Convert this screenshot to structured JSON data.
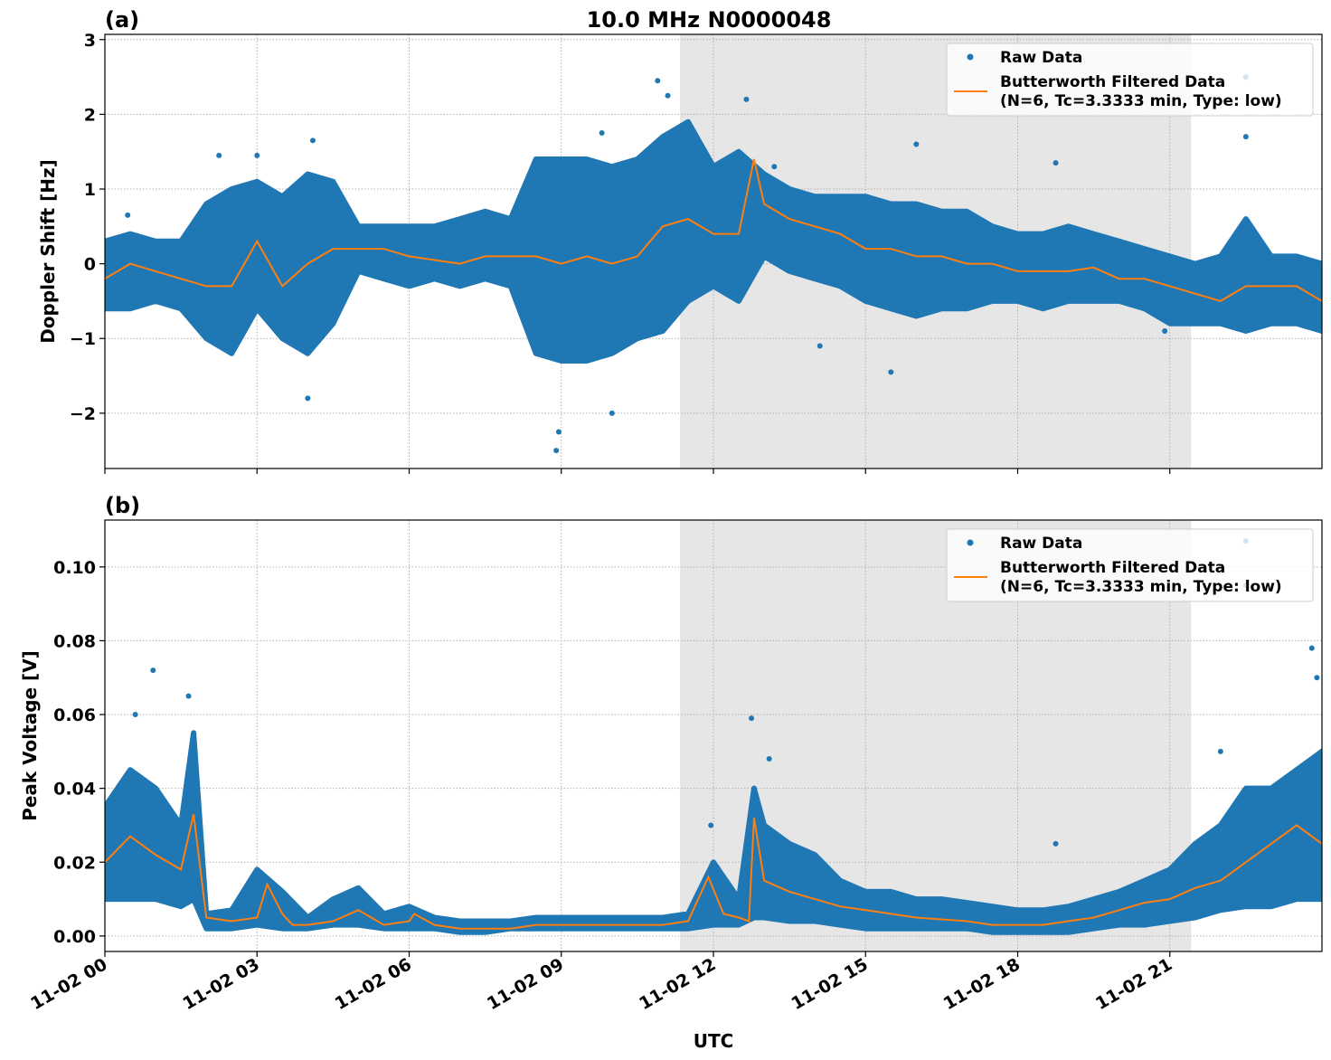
{
  "title": "10.0 MHz N0000048",
  "colors": {
    "raw": "#1f77b4",
    "filtered": "#ff7f0e",
    "shade": "#e6e6e6"
  },
  "chart_data": [
    {
      "type": "scatter",
      "panel_label": "(a)",
      "ylabel": "Doppler Shift [Hz]",
      "xlabel": "",
      "x_unit": "hours UTC on 11-02",
      "xlim": [
        0,
        24
      ],
      "ylim": [
        -2.74,
        3.07
      ],
      "yticks": [
        -2,
        -1,
        0,
        1,
        2,
        3
      ],
      "ytick_labels": [
        "−2",
        "−1",
        "0",
        "1",
        "2",
        "3"
      ],
      "grid": true,
      "shaded_interval": [
        11.34,
        21.42
      ],
      "legend": {
        "placement": "top-right",
        "entries": [
          "Raw Data",
          "Butterworth Filtered Data",
          "(N=6, Tc=3.3333 min, Type: low)"
        ]
      },
      "raw_envelope": [
        [
          0,
          -0.6,
          0.3
        ],
        [
          0.5,
          -0.6,
          0.4
        ],
        [
          1,
          -0.5,
          0.3
        ],
        [
          1.5,
          -0.6,
          0.3
        ],
        [
          2,
          -1.0,
          0.8
        ],
        [
          2.5,
          -1.2,
          1.0
        ],
        [
          3,
          -0.6,
          1.1
        ],
        [
          3.5,
          -1.0,
          0.9
        ],
        [
          4,
          -1.2,
          1.2
        ],
        [
          4.5,
          -0.8,
          1.1
        ],
        [
          5,
          -0.1,
          0.5
        ],
        [
          5.5,
          -0.2,
          0.5
        ],
        [
          6,
          -0.3,
          0.5
        ],
        [
          6.5,
          -0.2,
          0.5
        ],
        [
          7,
          -0.3,
          0.6
        ],
        [
          7.5,
          -0.2,
          0.7
        ],
        [
          8,
          -0.3,
          0.6
        ],
        [
          8.5,
          -1.2,
          1.4
        ],
        [
          9,
          -1.3,
          1.4
        ],
        [
          9.5,
          -1.3,
          1.4
        ],
        [
          10,
          -1.2,
          1.3
        ],
        [
          10.5,
          -1.0,
          1.4
        ],
        [
          11,
          -0.9,
          1.7
        ],
        [
          11.5,
          -0.5,
          1.9
        ],
        [
          12,
          -0.3,
          1.3
        ],
        [
          12.5,
          -0.5,
          1.5
        ],
        [
          13,
          0.1,
          1.2
        ],
        [
          13.5,
          -0.1,
          1.0
        ],
        [
          14,
          -0.2,
          0.9
        ],
        [
          14.5,
          -0.3,
          0.9
        ],
        [
          15,
          -0.5,
          0.9
        ],
        [
          15.5,
          -0.6,
          0.8
        ],
        [
          16,
          -0.7,
          0.8
        ],
        [
          16.5,
          -0.6,
          0.7
        ],
        [
          17,
          -0.6,
          0.7
        ],
        [
          17.5,
          -0.5,
          0.5
        ],
        [
          18,
          -0.5,
          0.4
        ],
        [
          18.5,
          -0.6,
          0.4
        ],
        [
          19,
          -0.5,
          0.5
        ],
        [
          19.5,
          -0.5,
          0.4
        ],
        [
          20,
          -0.5,
          0.3
        ],
        [
          20.5,
          -0.6,
          0.2
        ],
        [
          21,
          -0.8,
          0.1
        ],
        [
          21.5,
          -0.8,
          0.0
        ],
        [
          22,
          -0.8,
          0.1
        ],
        [
          22.5,
          -0.9,
          0.6
        ],
        [
          23,
          -0.8,
          0.1
        ],
        [
          23.5,
          -0.8,
          0.1
        ],
        [
          24,
          -0.9,
          0.0
        ]
      ],
      "raw_outliers": [
        [
          10.9,
          2.45
        ],
        [
          11.1,
          2.25
        ],
        [
          12.65,
          2.2
        ],
        [
          22.5,
          2.5
        ],
        [
          22.5,
          1.7
        ],
        [
          8.9,
          -2.5
        ],
        [
          8.95,
          -2.25
        ],
        [
          4.1,
          1.65
        ],
        [
          15.5,
          -1.45
        ],
        [
          16.0,
          1.6
        ],
        [
          18.75,
          1.35
        ],
        [
          0.45,
          0.65
        ],
        [
          2.25,
          1.45
        ],
        [
          3.0,
          1.45
        ],
        [
          4.0,
          -1.8
        ],
        [
          9.8,
          1.75
        ],
        [
          10.0,
          -2.0
        ],
        [
          13.2,
          1.3
        ],
        [
          14.1,
          -1.1
        ],
        [
          20.9,
          -0.9
        ]
      ],
      "filtered": [
        [
          0,
          -0.2
        ],
        [
          0.5,
          0.0
        ],
        [
          1,
          -0.1
        ],
        [
          1.5,
          -0.2
        ],
        [
          2,
          -0.3
        ],
        [
          2.5,
          -0.3
        ],
        [
          3,
          0.3
        ],
        [
          3.5,
          -0.3
        ],
        [
          4,
          0.0
        ],
        [
          4.5,
          0.2
        ],
        [
          5,
          0.2
        ],
        [
          5.5,
          0.2
        ],
        [
          6,
          0.1
        ],
        [
          6.5,
          0.05
        ],
        [
          7,
          0.0
        ],
        [
          7.5,
          0.1
        ],
        [
          8,
          0.1
        ],
        [
          8.5,
          0.1
        ],
        [
          9,
          0.0
        ],
        [
          9.5,
          0.1
        ],
        [
          10,
          0.0
        ],
        [
          10.5,
          0.1
        ],
        [
          11,
          0.5
        ],
        [
          11.5,
          0.6
        ],
        [
          12,
          0.4
        ],
        [
          12.5,
          0.4
        ],
        [
          12.8,
          1.4
        ],
        [
          13,
          0.8
        ],
        [
          13.5,
          0.6
        ],
        [
          14,
          0.5
        ],
        [
          14.5,
          0.4
        ],
        [
          15,
          0.2
        ],
        [
          15.5,
          0.2
        ],
        [
          16,
          0.1
        ],
        [
          16.5,
          0.1
        ],
        [
          17,
          0.0
        ],
        [
          17.5,
          0.0
        ],
        [
          18,
          -0.1
        ],
        [
          18.5,
          -0.1
        ],
        [
          19,
          -0.1
        ],
        [
          19.5,
          -0.05
        ],
        [
          20,
          -0.2
        ],
        [
          20.5,
          -0.2
        ],
        [
          21,
          -0.3
        ],
        [
          21.5,
          -0.4
        ],
        [
          22,
          -0.5
        ],
        [
          22.5,
          -0.3
        ],
        [
          23,
          -0.3
        ],
        [
          23.5,
          -0.3
        ],
        [
          24,
          -0.5
        ]
      ]
    },
    {
      "type": "scatter",
      "panel_label": "(b)",
      "ylabel": "Peak Voltage [V]",
      "xlabel": "UTC",
      "xlim": [
        0,
        24
      ],
      "ylim": [
        -0.0042,
        0.1127
      ],
      "yticks": [
        0,
        0.02,
        0.04,
        0.06,
        0.08,
        0.1
      ],
      "ytick_labels": [
        "0.00",
        "0.02",
        "0.04",
        "0.06",
        "0.08",
        "0.10"
      ],
      "xticks": [
        0,
        3,
        6,
        9,
        12,
        15,
        18,
        21
      ],
      "xtick_labels": [
        "11-02 00",
        "11-02 03",
        "11-02 06",
        "11-02 09",
        "11-02 12",
        "11-02 15",
        "11-02 18",
        "11-02 21"
      ],
      "grid": true,
      "shaded_interval": [
        11.34,
        21.42
      ],
      "legend": {
        "placement": "top-right",
        "entries": [
          "Raw Data",
          "Butterworth Filtered Data",
          "(N=6, Tc=3.3333 min, Type: low)"
        ]
      },
      "raw_envelope": [
        [
          0,
          0.01,
          0.035
        ],
        [
          0.5,
          0.01,
          0.045
        ],
        [
          1,
          0.01,
          0.04
        ],
        [
          1.5,
          0.008,
          0.03
        ],
        [
          1.75,
          0.01,
          0.055
        ],
        [
          2,
          0.002,
          0.006
        ],
        [
          2.5,
          0.002,
          0.007
        ],
        [
          3,
          0.003,
          0.018
        ],
        [
          3.5,
          0.002,
          0.012
        ],
        [
          4,
          0.002,
          0.005
        ],
        [
          4.5,
          0.003,
          0.01
        ],
        [
          5,
          0.003,
          0.013
        ],
        [
          5.5,
          0.002,
          0.006
        ],
        [
          6,
          0.002,
          0.008
        ],
        [
          6.5,
          0.002,
          0.005
        ],
        [
          7,
          0.001,
          0.004
        ],
        [
          7.5,
          0.001,
          0.004
        ],
        [
          8,
          0.002,
          0.004
        ],
        [
          8.5,
          0.002,
          0.005
        ],
        [
          9,
          0.002,
          0.005
        ],
        [
          10,
          0.002,
          0.005
        ],
        [
          11,
          0.002,
          0.005
        ],
        [
          11.5,
          0.002,
          0.006
        ],
        [
          12,
          0.003,
          0.02
        ],
        [
          12.5,
          0.003,
          0.01
        ],
        [
          12.8,
          0.005,
          0.04
        ],
        [
          13,
          0.005,
          0.03
        ],
        [
          13.5,
          0.004,
          0.025
        ],
        [
          14,
          0.004,
          0.022
        ],
        [
          14.5,
          0.003,
          0.015
        ],
        [
          15,
          0.002,
          0.012
        ],
        [
          15.5,
          0.002,
          0.012
        ],
        [
          16,
          0.002,
          0.01
        ],
        [
          16.5,
          0.002,
          0.01
        ],
        [
          17,
          0.002,
          0.009
        ],
        [
          17.5,
          0.001,
          0.008
        ],
        [
          18,
          0.001,
          0.007
        ],
        [
          18.5,
          0.001,
          0.007
        ],
        [
          19,
          0.001,
          0.008
        ],
        [
          19.5,
          0.002,
          0.01
        ],
        [
          20,
          0.003,
          0.012
        ],
        [
          20.5,
          0.003,
          0.015
        ],
        [
          21,
          0.004,
          0.018
        ],
        [
          21.5,
          0.005,
          0.025
        ],
        [
          22,
          0.007,
          0.03
        ],
        [
          22.5,
          0.008,
          0.04
        ],
        [
          23,
          0.008,
          0.04
        ],
        [
          23.5,
          0.01,
          0.045
        ],
        [
          24,
          0.01,
          0.05
        ]
      ],
      "raw_outliers": [
        [
          22.5,
          0.107
        ],
        [
          22.5,
          0.095
        ],
        [
          0.95,
          0.072
        ],
        [
          1.65,
          0.065
        ],
        [
          12.75,
          0.059
        ],
        [
          23.8,
          0.078
        ],
        [
          18.75,
          0.025
        ],
        [
          0.6,
          0.06
        ],
        [
          13.1,
          0.048
        ],
        [
          23.9,
          0.07
        ],
        [
          22.0,
          0.05
        ],
        [
          11.95,
          0.03
        ]
      ],
      "filtered": [
        [
          0,
          0.02
        ],
        [
          0.5,
          0.027
        ],
        [
          1,
          0.022
        ],
        [
          1.5,
          0.018
        ],
        [
          1.75,
          0.033
        ],
        [
          2,
          0.005
        ],
        [
          2.5,
          0.004
        ],
        [
          3,
          0.005
        ],
        [
          3.2,
          0.014
        ],
        [
          3.5,
          0.006
        ],
        [
          3.7,
          0.003
        ],
        [
          4,
          0.003
        ],
        [
          4.5,
          0.004
        ],
        [
          5,
          0.007
        ],
        [
          5.5,
          0.003
        ],
        [
          6,
          0.004
        ],
        [
          6.1,
          0.006
        ],
        [
          6.5,
          0.003
        ],
        [
          7,
          0.002
        ],
        [
          8,
          0.002
        ],
        [
          8.5,
          0.003
        ],
        [
          9,
          0.003
        ],
        [
          10,
          0.003
        ],
        [
          11,
          0.003
        ],
        [
          11.5,
          0.004
        ],
        [
          11.9,
          0.016
        ],
        [
          12.2,
          0.006
        ],
        [
          12.5,
          0.005
        ],
        [
          12.7,
          0.004
        ],
        [
          12.8,
          0.032
        ],
        [
          13,
          0.015
        ],
        [
          13.5,
          0.012
        ],
        [
          14,
          0.01
        ],
        [
          14.5,
          0.008
        ],
        [
          15,
          0.007
        ],
        [
          15.5,
          0.006
        ],
        [
          16,
          0.005
        ],
        [
          17,
          0.004
        ],
        [
          17.5,
          0.003
        ],
        [
          18,
          0.003
        ],
        [
          18.5,
          0.003
        ],
        [
          19,
          0.004
        ],
        [
          19.5,
          0.005
        ],
        [
          20,
          0.007
        ],
        [
          20.5,
          0.009
        ],
        [
          21,
          0.01
        ],
        [
          21.5,
          0.013
        ],
        [
          22,
          0.015
        ],
        [
          22.5,
          0.02
        ],
        [
          23,
          0.025
        ],
        [
          23.5,
          0.03
        ],
        [
          24,
          0.025
        ]
      ]
    }
  ]
}
